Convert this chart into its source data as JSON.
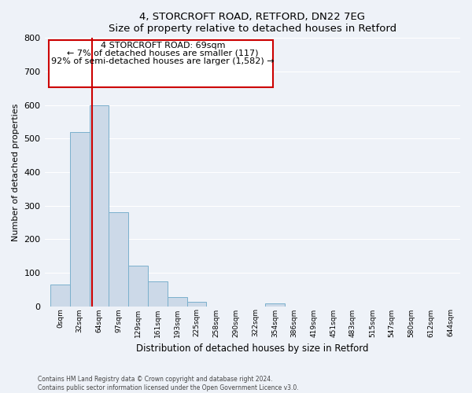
{
  "title": "4, STORCROFT ROAD, RETFORD, DN22 7EG",
  "subtitle": "Size of property relative to detached houses in Retford",
  "xlabel": "Distribution of detached houses by size in Retford",
  "ylabel": "Number of detached properties",
  "bar_labels": [
    "0sqm",
    "32sqm",
    "64sqm",
    "97sqm",
    "129sqm",
    "161sqm",
    "193sqm",
    "225sqm",
    "258sqm",
    "290sqm",
    "322sqm",
    "354sqm",
    "386sqm",
    "419sqm",
    "451sqm",
    "483sqm",
    "515sqm",
    "547sqm",
    "580sqm",
    "612sqm",
    "644sqm"
  ],
  "bar_heights": [
    65,
    520,
    600,
    280,
    120,
    75,
    28,
    13,
    0,
    0,
    0,
    9,
    0,
    0,
    0,
    0,
    0,
    0,
    0,
    0,
    0
  ],
  "bar_color": "#ccd9e8",
  "bar_edge_color": "#7ab0cc",
  "ylim": [
    0,
    800
  ],
  "yticks": [
    0,
    100,
    200,
    300,
    400,
    500,
    600,
    700,
    800
  ],
  "marker_line_color": "#cc0000",
  "annotation_text_line1": "4 STORCROFT ROAD: 69sqm",
  "annotation_text_line2": "← 7% of detached houses are smaller (117)",
  "annotation_text_line3": "92% of semi-detached houses are larger (1,582) →",
  "footer_line1": "Contains HM Land Registry data © Crown copyright and database right 2024.",
  "footer_line2": "Contains public sector information licensed under the Open Government Licence v3.0.",
  "background_color": "#eef2f8",
  "plot_bg_color": "#eef2f8",
  "grid_color": "#ffffff"
}
